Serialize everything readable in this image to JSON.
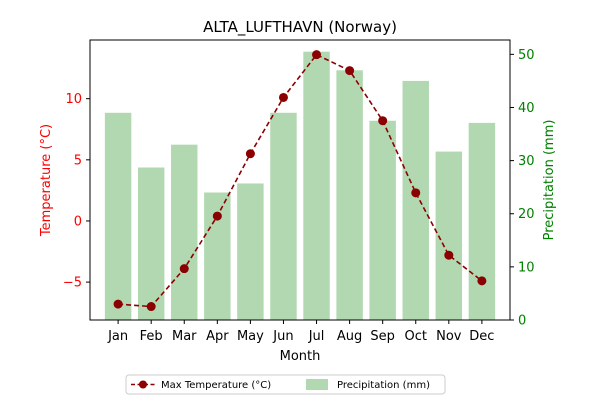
{
  "colors": {
    "temperature": "#8b0000",
    "precipitation": "#b2d8b2",
    "left_axis": "#ff0000",
    "right_axis": "#008000",
    "frame": "#000000"
  },
  "chart_data": {
    "type": "bar+line",
    "title": "ALTA_LUFTHAVN (Norway)",
    "xlabel": "Month",
    "ylabel_left": "Temperature (°C)",
    "ylabel_right": "Precipitation (mm)",
    "categories": [
      "Jan",
      "Feb",
      "Mar",
      "Apr",
      "May",
      "Jun",
      "Jul",
      "Aug",
      "Sep",
      "Oct",
      "Nov",
      "Dec"
    ],
    "ylim_left": [
      -8.1,
      14.8
    ],
    "yticks_left": [
      -5,
      0,
      5,
      10
    ],
    "ylim_right": [
      0,
      52.7
    ],
    "yticks_right": [
      0,
      10,
      20,
      30,
      40,
      50
    ],
    "series": [
      {
        "name": "Max Temperature (°C)",
        "type": "line",
        "axis": "left",
        "style": "dashed-with-circle-markers",
        "values": [
          -6.8,
          -7.0,
          -3.9,
          0.4,
          5.5,
          10.1,
          13.6,
          12.3,
          8.2,
          2.3,
          -2.8,
          -4.9
        ]
      },
      {
        "name": "Precipitation (mm)",
        "type": "bar",
        "axis": "right",
        "values": [
          39,
          28.7,
          33,
          24,
          25.7,
          39,
          50.5,
          47,
          37.5,
          45,
          31.7,
          37.1
        ]
      }
    ],
    "legend": {
      "placement": "bottom-center",
      "columns": 2
    },
    "grid": false
  }
}
